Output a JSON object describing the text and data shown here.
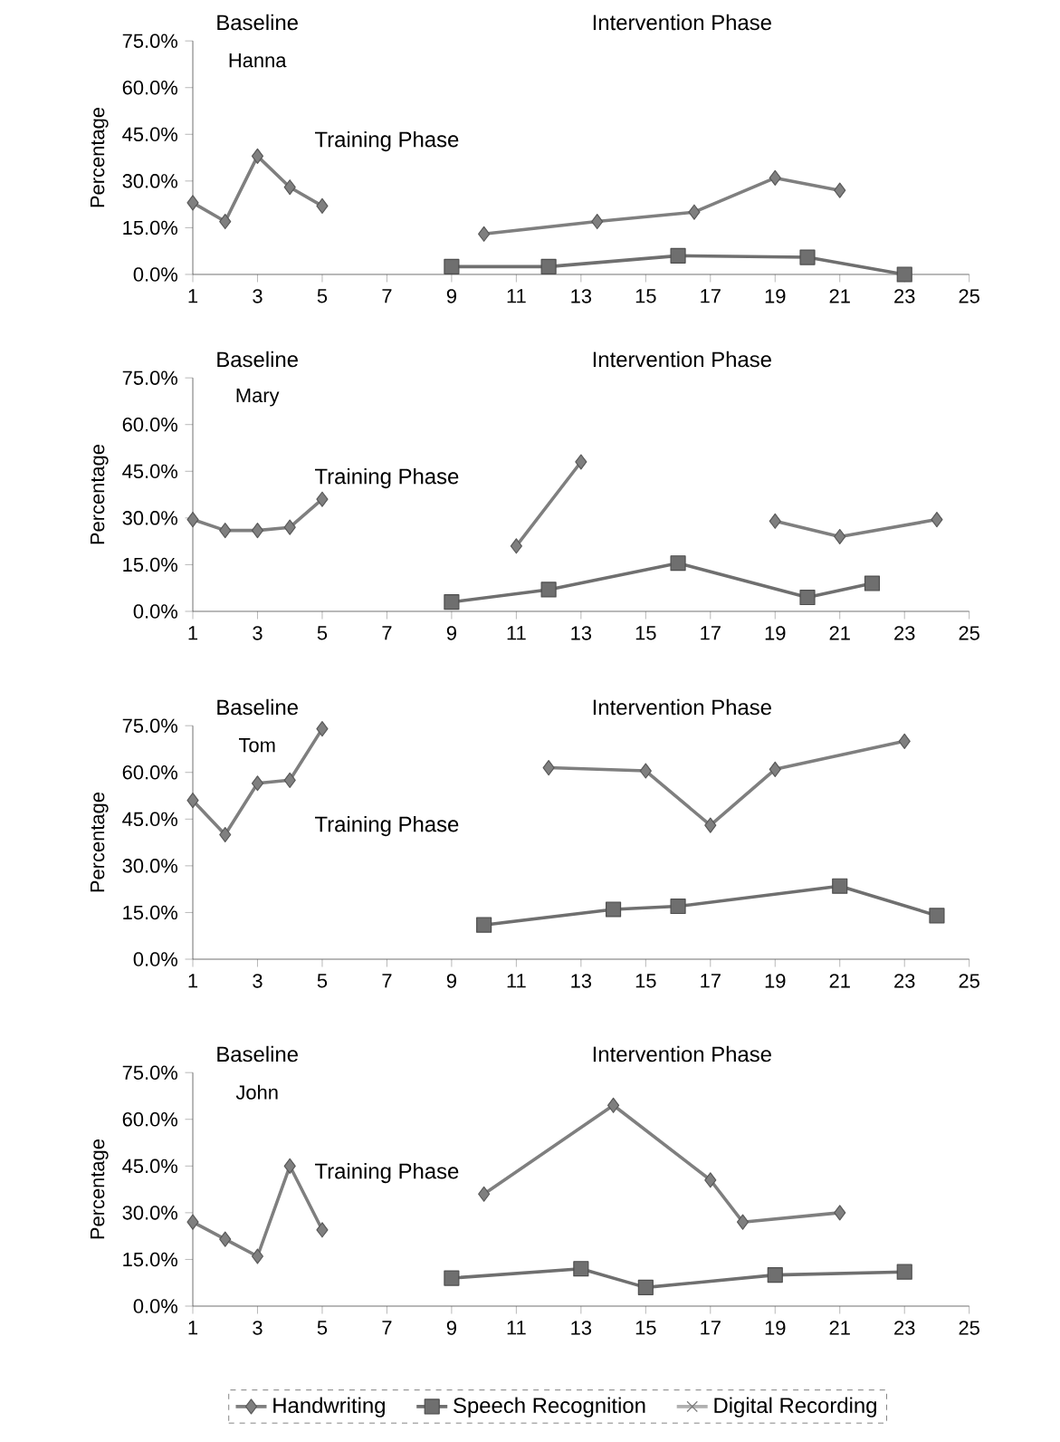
{
  "chart_data": [
    {
      "type": "line",
      "title": "Hanna",
      "annotations": [
        "Baseline",
        "Training Phase",
        "Intervention Phase"
      ],
      "ylabel": "Percentage",
      "xlim": [
        1,
        25
      ],
      "xticks": [
        1,
        3,
        5,
        7,
        9,
        11,
        13,
        15,
        17,
        19,
        21,
        23,
        25
      ],
      "ylim": [
        0,
        75
      ],
      "yticks": [
        {
          "value": 0,
          "label": "0.0%"
        },
        {
          "value": 15,
          "label": "15.0%"
        },
        {
          "value": 30,
          "label": "30.0%"
        },
        {
          "value": 45,
          "label": "45.0%"
        },
        {
          "value": 60,
          "label": "60.0%"
        },
        {
          "value": 75,
          "label": "75.0%"
        }
      ],
      "legend": false,
      "series": [
        {
          "color": "#7f7f7f",
          "marker": "diamond",
          "x": [
            1,
            2,
            3,
            4,
            5,
            6,
            10,
            13.5,
            16.5,
            19,
            21
          ],
          "values": [
            23,
            17,
            38,
            28,
            22,
            null,
            13,
            17,
            20,
            31,
            27
          ]
        },
        {
          "color": "#6f6f6f",
          "marker": "square",
          "x": [
            9,
            12,
            16,
            20,
            23
          ],
          "values": [
            2.5,
            2.5,
            6,
            5.5,
            0
          ]
        }
      ]
    },
    {
      "type": "line",
      "title": "Mary",
      "annotations": [
        "Baseline",
        "Training Phase",
        "Intervention Phase"
      ],
      "ylabel": "Percentage",
      "xlim": [
        1,
        25
      ],
      "xticks": [
        1,
        3,
        5,
        7,
        9,
        11,
        13,
        15,
        17,
        19,
        21,
        23,
        25
      ],
      "ylim": [
        0,
        75
      ],
      "yticks": [
        {
          "value": 0,
          "label": "0.0%"
        },
        {
          "value": 15,
          "label": "15.0%"
        },
        {
          "value": 30,
          "label": "30.0%"
        },
        {
          "value": 45,
          "label": "45.0%"
        },
        {
          "value": 60,
          "label": "60.0%"
        },
        {
          "value": 75,
          "label": "75.0%"
        }
      ],
      "legend": false,
      "series": [
        {
          "color": "#7f7f7f",
          "marker": "diamond",
          "x": [
            1,
            2,
            3,
            4,
            5,
            6,
            11,
            13,
            16,
            19,
            21,
            24
          ],
          "values": [
            29.5,
            26,
            26,
            27,
            36,
            null,
            21,
            48,
            null,
            29,
            24,
            29.5
          ]
        },
        {
          "color": "#6f6f6f",
          "marker": "square",
          "x": [
            9,
            12,
            16,
            20,
            22
          ],
          "values": [
            3,
            7,
            15.5,
            4.5,
            9
          ]
        }
      ]
    },
    {
      "type": "line",
      "title": "Tom",
      "annotations": [
        "Baseline",
        "Training Phase",
        "Intervention Phase"
      ],
      "ylabel": "Percentage",
      "xlim": [
        1,
        25
      ],
      "xticks": [
        1,
        3,
        5,
        7,
        9,
        11,
        13,
        15,
        17,
        19,
        21,
        23,
        25
      ],
      "ylim": [
        0,
        75
      ],
      "yticks": [
        {
          "value": 0,
          "label": "0.0%"
        },
        {
          "value": 15,
          "label": "15.0%"
        },
        {
          "value": 30,
          "label": "30.0%"
        },
        {
          "value": 45,
          "label": "45.0%"
        },
        {
          "value": 60,
          "label": "60.0%"
        },
        {
          "value": 75,
          "label": "75.0%"
        }
      ],
      "legend": false,
      "series": [
        {
          "color": "#7f7f7f",
          "marker": "diamond",
          "x": [
            1,
            2,
            3,
            4,
            5,
            6,
            12,
            15,
            17,
            19,
            23
          ],
          "values": [
            51,
            40,
            56.5,
            57.5,
            74,
            null,
            61.5,
            60.5,
            43,
            61,
            70
          ]
        },
        {
          "color": "#6f6f6f",
          "marker": "square",
          "x": [
            10,
            14,
            16,
            21,
            24
          ],
          "values": [
            11,
            16,
            17,
            23.5,
            14
          ]
        }
      ]
    },
    {
      "type": "line",
      "title": "John",
      "annotations": [
        "Baseline",
        "Training Phase",
        "Intervention Phase"
      ],
      "ylabel": "Percentage",
      "xlim": [
        1,
        25
      ],
      "xticks": [
        1,
        3,
        5,
        7,
        9,
        11,
        13,
        15,
        17,
        19,
        21,
        23,
        25
      ],
      "ylim": [
        0,
        75
      ],
      "yticks": [
        {
          "value": 0,
          "label": "0.0%"
        },
        {
          "value": 15,
          "label": "15.0%"
        },
        {
          "value": 30,
          "label": "30.0%"
        },
        {
          "value": 45,
          "label": "45.0%"
        },
        {
          "value": 60,
          "label": "60.0%"
        },
        {
          "value": 75,
          "label": "75.0%"
        }
      ],
      "legend": "bottom",
      "series": [
        {
          "name": "Handwriting",
          "color": "#7f7f7f",
          "marker": "diamond",
          "x": [
            1,
            2,
            3,
            4,
            5,
            6,
            10,
            14,
            17,
            18,
            21
          ],
          "values": [
            27,
            21.5,
            16,
            45,
            24.5,
            null,
            36,
            64.5,
            40.5,
            27,
            30
          ]
        },
        {
          "name": "Speech Recognition",
          "color": "#6f6f6f",
          "marker": "square",
          "x": [
            9,
            13,
            15,
            19,
            23
          ],
          "values": [
            9,
            12,
            6,
            10,
            11
          ]
        },
        {
          "name": "Digital Recording",
          "color": "#b0b0b0",
          "marker": "cross"
        }
      ]
    }
  ]
}
